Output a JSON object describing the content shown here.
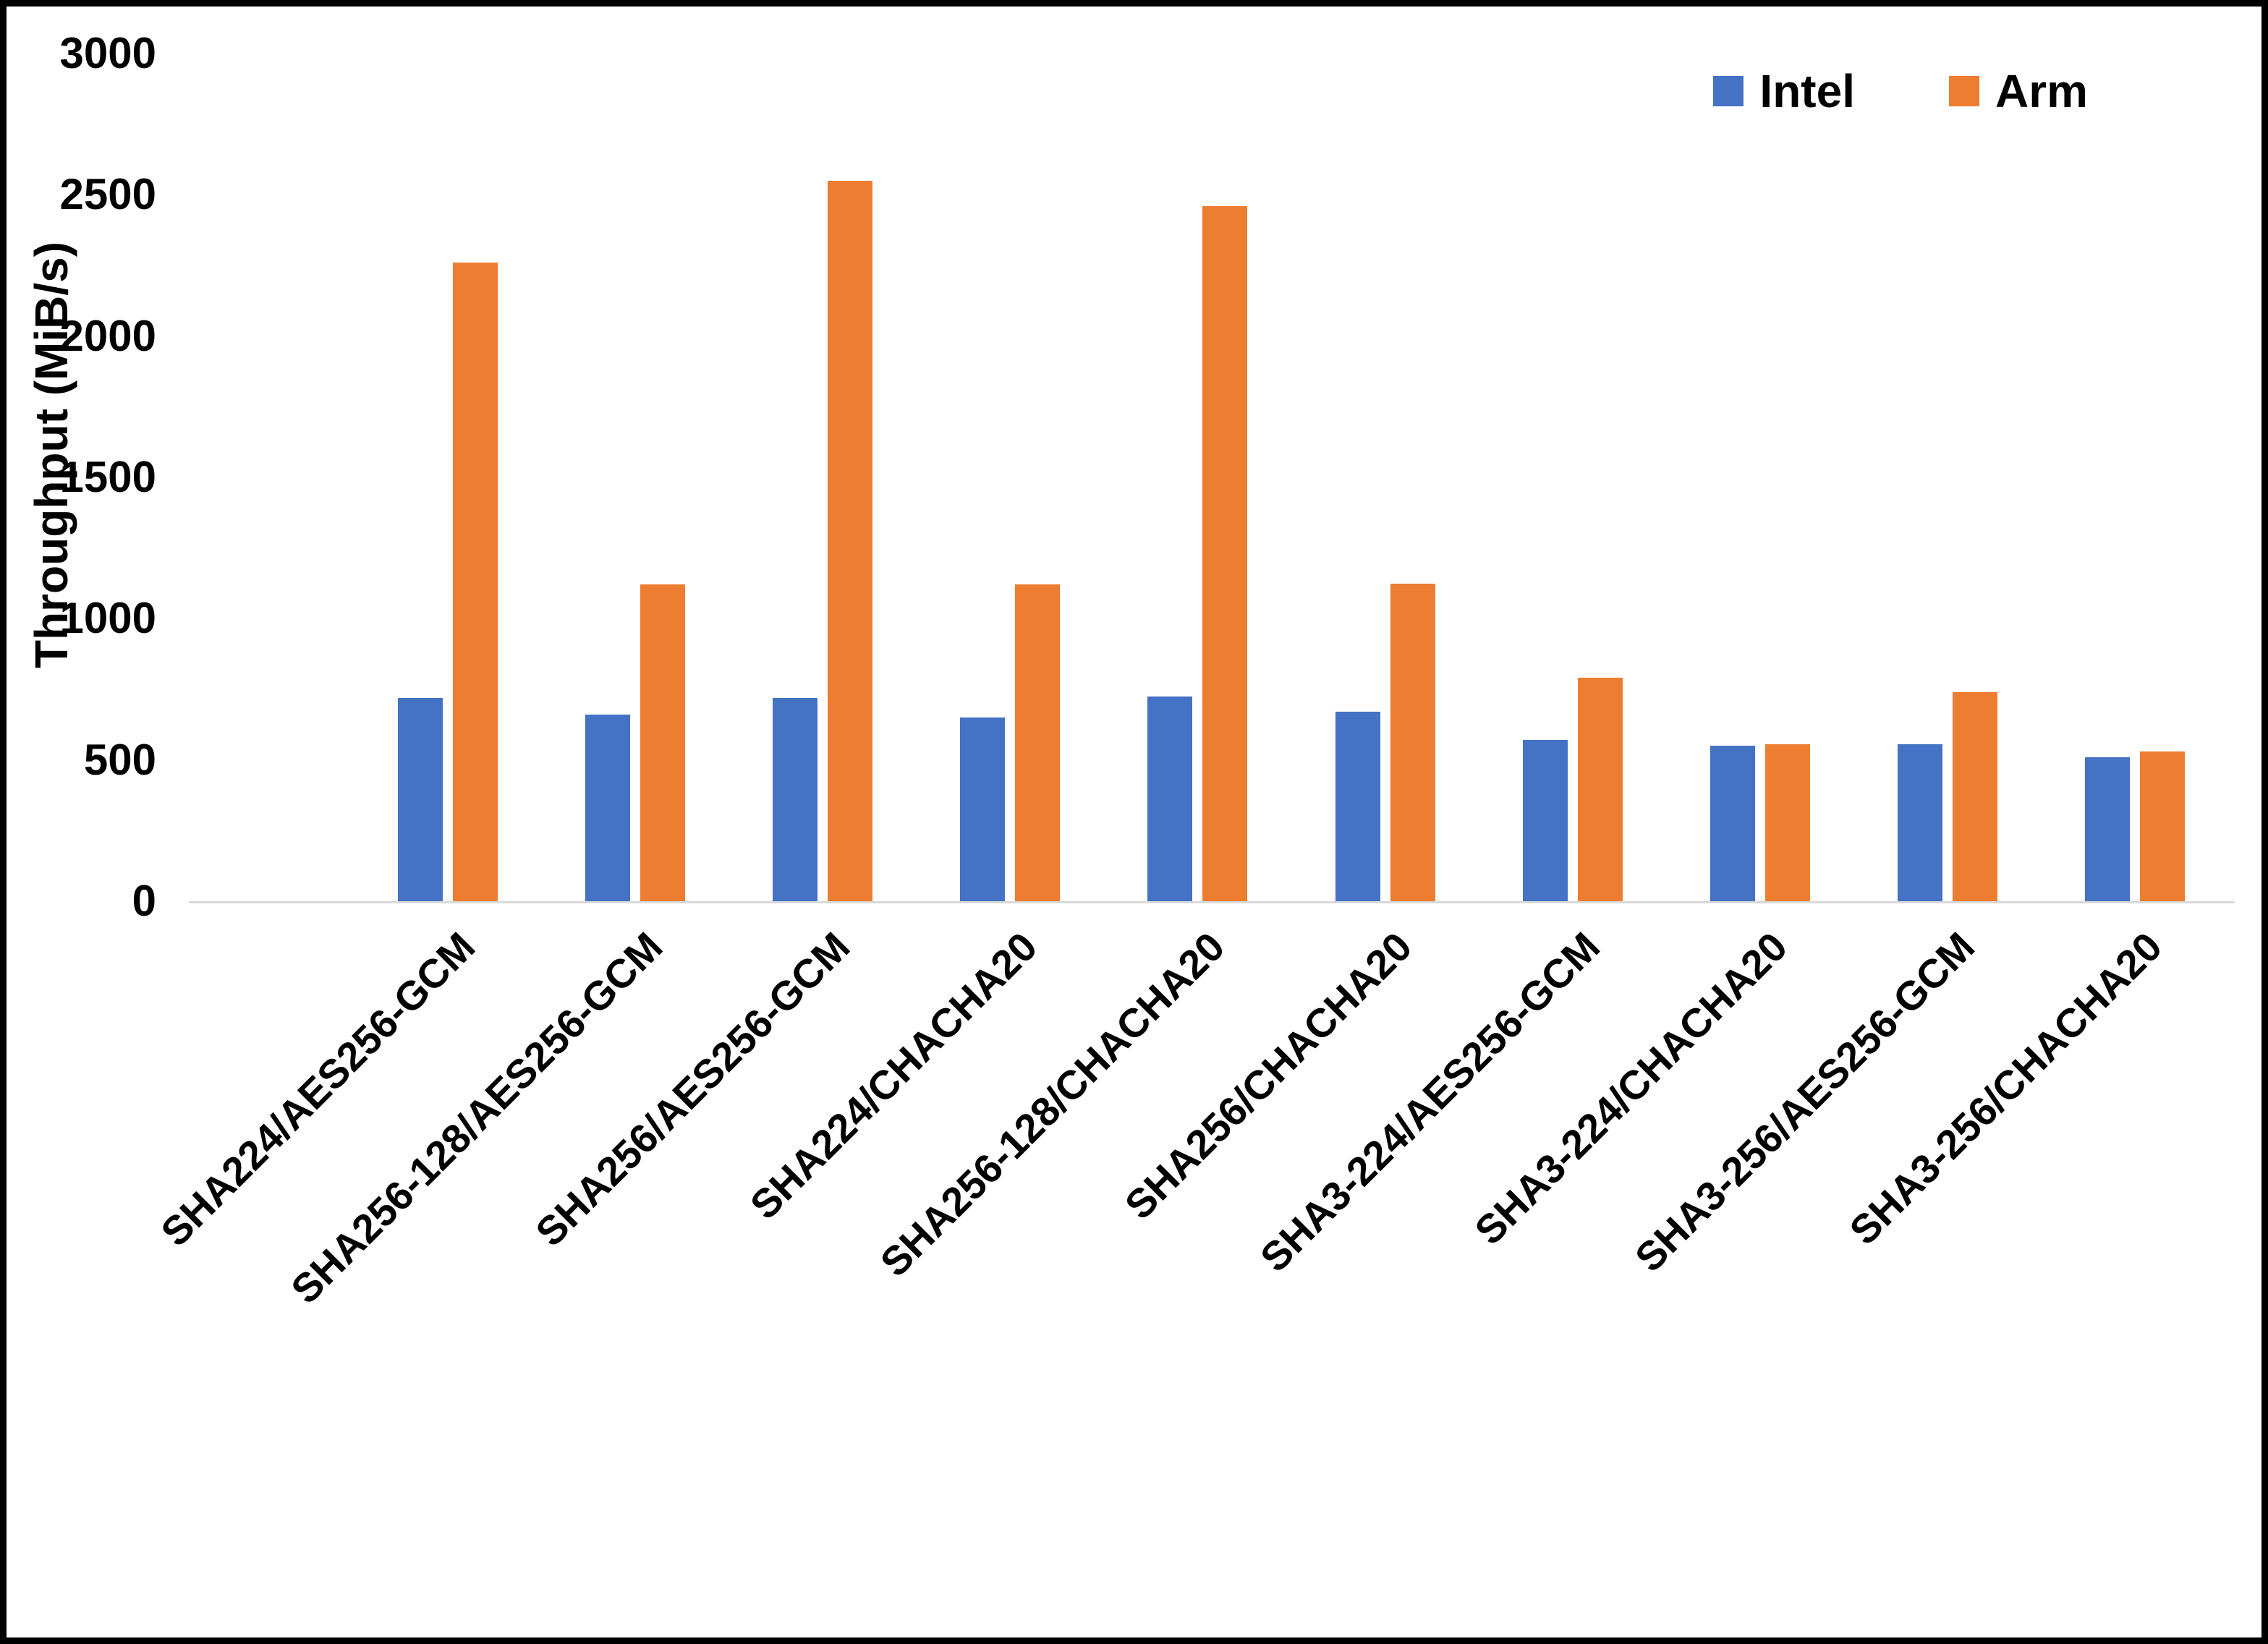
{
  "chart_data": {
    "type": "bar",
    "title": "",
    "xlabel": "",
    "ylabel": "Throughput (MiB/s)",
    "ylim": [
      0,
      3000
    ],
    "ytick_step": 500,
    "grid": false,
    "legend_position": "top-right",
    "categories": [
      "SHA224/AES256-GCM",
      "SHA256-128/AES256-GCM",
      "SHA256/AES256-GCM",
      "SHA224/CHACHA20",
      "SHA256-128/CHACHA20",
      "SHA256/CHACHA20",
      "SHA3-224/AES256-GCM",
      "SHA3-224/CHACHA20",
      "SHA3-256/AES256-GCM",
      "SHA3-256/CHACHA20"
    ],
    "series": [
      {
        "name": "Intel",
        "color": "#4472C4",
        "values": [
          720,
          660,
          720,
          650,
          725,
          670,
          570,
          550,
          555,
          510
        ]
      },
      {
        "name": "Arm",
        "color": "#ED7D31",
        "values": [
          2260,
          1120,
          2550,
          1120,
          2460,
          1125,
          790,
          555,
          740,
          530
        ]
      }
    ]
  }
}
